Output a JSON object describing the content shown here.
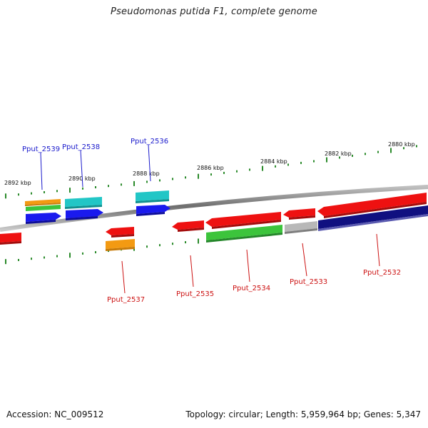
{
  "title": "Pseudomonas putida F1, complete genome",
  "footer": {
    "accession": "Accession: NC_009512",
    "summary": "Topology: circular; Length: 5,959,964 bp; Genes: 5,347"
  },
  "scale_labels": [
    "2892 kbp",
    "2890 kbp",
    "2888 kbp",
    "2886 kbp",
    "2884 kbp",
    "2882 kbp",
    "2880 kbp"
  ],
  "gene_labels": {
    "top": [
      "Pput_2539",
      "Pput_2538",
      "Pput_2536"
    ],
    "bottom": [
      "Pput_2537",
      "Pput_2535",
      "Pput_2534",
      "Pput_2533",
      "Pput_2532"
    ]
  },
  "colors": {
    "forward_label": "#1a1acc",
    "reverse_label": "#cc1111",
    "tick": "#2a8a2a",
    "backbone": "#8a8a8a",
    "red": "#ee1111",
    "blue": "#1a1aee",
    "cyan": "#22c6c6",
    "orange": "#f39a12",
    "green": "#3cc43c",
    "gray": "#b8b8b8",
    "navy": "#101080"
  }
}
